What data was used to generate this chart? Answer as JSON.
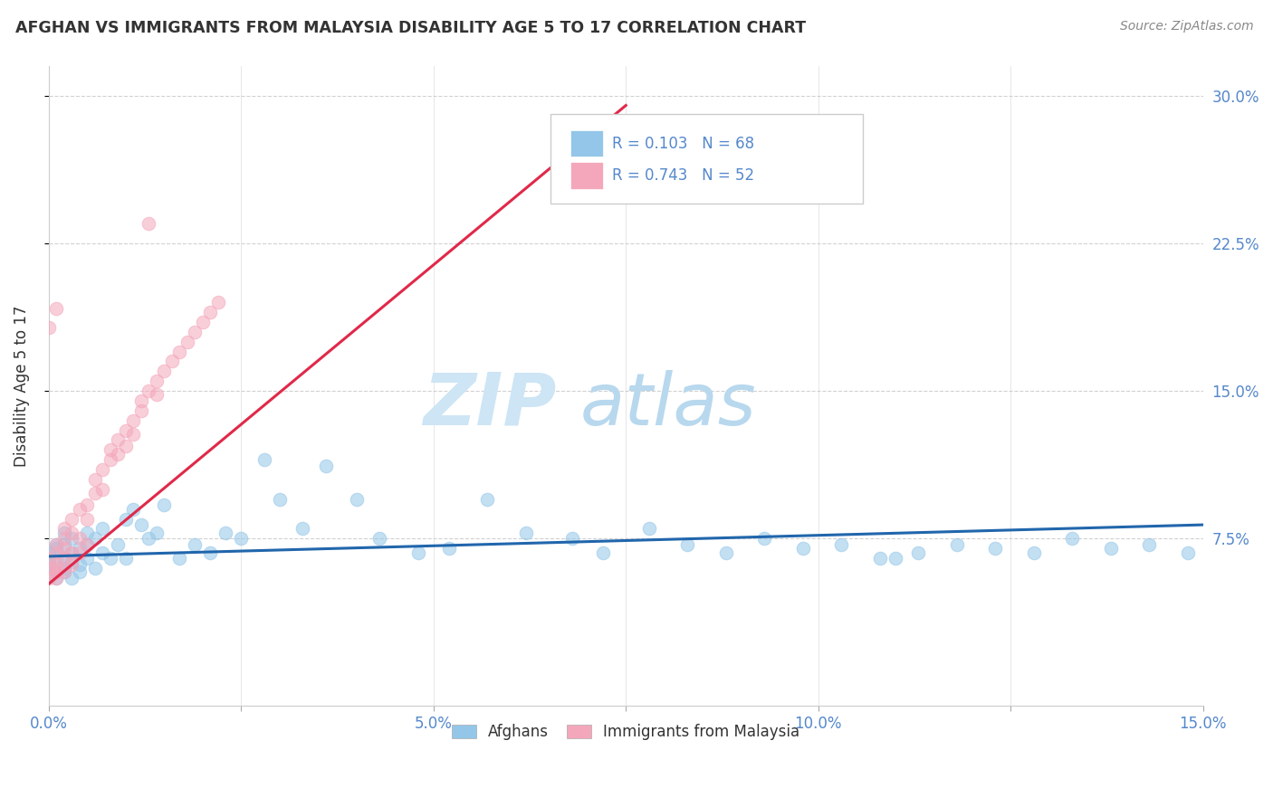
{
  "title": "AFGHAN VS IMMIGRANTS FROM MALAYSIA DISABILITY AGE 5 TO 17 CORRELATION CHART",
  "source": "Source: ZipAtlas.com",
  "ylabel": "Disability Age 5 to 17",
  "xlim": [
    0.0,
    0.15
  ],
  "ylim": [
    -0.01,
    0.315
  ],
  "xtick_vals": [
    0.0,
    0.025,
    0.05,
    0.075,
    0.1,
    0.125,
    0.15
  ],
  "xtick_labels": [
    "0.0%",
    "",
    "5.0%",
    "",
    "10.0%",
    "",
    "15.0%"
  ],
  "ytick_vals": [
    0.075,
    0.15,
    0.225,
    0.3
  ],
  "ytick_labels": [
    "7.5%",
    "15.0%",
    "22.5%",
    "30.0%"
  ],
  "color_blue": "#93c6e8",
  "color_pink": "#f4a7bb",
  "trend_blue": "#2166ac",
  "trend_pink": "#e0294a",
  "watermark_zip": "ZIP",
  "watermark_atlas": "atlas",
  "watermark_color_zip": "#cde5f5",
  "watermark_color_atlas": "#b8d8ee",
  "background_color": "#ffffff",
  "grid_color": "#cccccc",
  "title_color": "#333333",
  "axis_label_color": "#333333",
  "tick_color": "#5588cc",
  "source_color": "#888888",
  "legend_label1": "R = 0.103",
  "legend_n1": "N = 68",
  "legend_label2": "R = 0.743",
  "legend_n2": "N = 52",
  "afghans_x": [
    0.0,
    0.0,
    0.001,
    0.001,
    0.001,
    0.001,
    0.001,
    0.002,
    0.002,
    0.002,
    0.002,
    0.002,
    0.003,
    0.003,
    0.003,
    0.003,
    0.004,
    0.004,
    0.004,
    0.005,
    0.005,
    0.005,
    0.006,
    0.006,
    0.007,
    0.007,
    0.008,
    0.009,
    0.01,
    0.01,
    0.011,
    0.012,
    0.013,
    0.014,
    0.015,
    0.017,
    0.019,
    0.021,
    0.023,
    0.025,
    0.028,
    0.03,
    0.033,
    0.036,
    0.04,
    0.043,
    0.048,
    0.052,
    0.057,
    0.062,
    0.068,
    0.072,
    0.078,
    0.083,
    0.088,
    0.093,
    0.098,
    0.103,
    0.108,
    0.113,
    0.118,
    0.123,
    0.128,
    0.133,
    0.138,
    0.143,
    0.148,
    0.11
  ],
  "afghans_y": [
    0.062,
    0.068,
    0.055,
    0.072,
    0.058,
    0.065,
    0.07,
    0.06,
    0.065,
    0.072,
    0.058,
    0.078,
    0.063,
    0.068,
    0.055,
    0.075,
    0.062,
    0.07,
    0.058,
    0.072,
    0.065,
    0.078,
    0.06,
    0.075,
    0.068,
    0.08,
    0.065,
    0.072,
    0.085,
    0.065,
    0.09,
    0.082,
    0.075,
    0.078,
    0.092,
    0.065,
    0.072,
    0.068,
    0.078,
    0.075,
    0.115,
    0.095,
    0.08,
    0.112,
    0.095,
    0.075,
    0.068,
    0.07,
    0.095,
    0.078,
    0.075,
    0.068,
    0.08,
    0.072,
    0.068,
    0.075,
    0.07,
    0.072,
    0.065,
    0.068,
    0.072,
    0.07,
    0.068,
    0.075,
    0.07,
    0.072,
    0.068,
    0.065
  ],
  "malaysia_x": [
    0.0,
    0.0,
    0.0,
    0.001,
    0.001,
    0.001,
    0.001,
    0.001,
    0.001,
    0.002,
    0.002,
    0.002,
    0.002,
    0.002,
    0.003,
    0.003,
    0.003,
    0.003,
    0.004,
    0.004,
    0.004,
    0.005,
    0.005,
    0.005,
    0.006,
    0.006,
    0.007,
    0.007,
    0.008,
    0.008,
    0.009,
    0.009,
    0.01,
    0.01,
    0.011,
    0.011,
    0.012,
    0.012,
    0.013,
    0.014,
    0.014,
    0.015,
    0.016,
    0.017,
    0.018,
    0.019,
    0.02,
    0.021,
    0.022,
    0.0,
    0.001,
    0.013
  ],
  "malaysia_y": [
    0.055,
    0.065,
    0.06,
    0.062,
    0.068,
    0.058,
    0.072,
    0.055,
    0.06,
    0.075,
    0.065,
    0.07,
    0.058,
    0.08,
    0.068,
    0.078,
    0.062,
    0.085,
    0.075,
    0.09,
    0.068,
    0.092,
    0.085,
    0.072,
    0.098,
    0.105,
    0.1,
    0.11,
    0.115,
    0.12,
    0.125,
    0.118,
    0.13,
    0.122,
    0.135,
    0.128,
    0.14,
    0.145,
    0.15,
    0.148,
    0.155,
    0.16,
    0.165,
    0.17,
    0.175,
    0.18,
    0.185,
    0.19,
    0.195,
    0.182,
    0.192,
    0.235
  ],
  "afghans_trend_x": [
    0.0,
    0.15
  ],
  "afghans_trend_y": [
    0.066,
    0.082
  ],
  "malaysia_trend_x": [
    0.0,
    0.075
  ],
  "malaysia_trend_y": [
    0.052,
    0.295
  ]
}
